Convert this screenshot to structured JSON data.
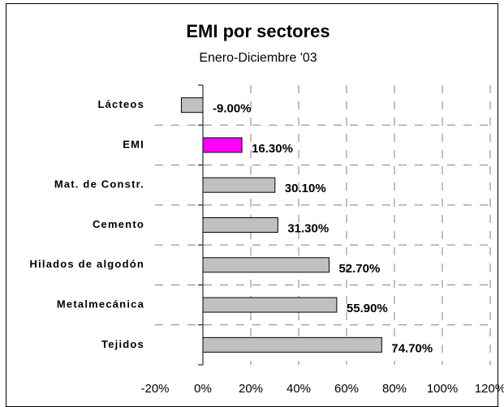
{
  "chart_data": {
    "type": "hbar",
    "title": "EMI por sectores",
    "subtitle": "Enero-Diciembre '03",
    "categories": [
      "Lácteos",
      "EMI",
      "Mat. de Constr.",
      "Cemento",
      "Hilados de algodón",
      "Metalmecánica",
      "Tejidos"
    ],
    "values": [
      -9,
      16.3,
      30.1,
      31.3,
      52.7,
      55.9,
      74.7
    ],
    "value_labels": [
      "-9.00%",
      "16.30%",
      "30.10%",
      "31.30%",
      "52.70%",
      "55.90%",
      "74.70%"
    ],
    "colors": [
      "#c0c0c0",
      "#ff00ff",
      "#c0c0c0",
      "#c0c0c0",
      "#c0c0c0",
      "#c0c0c0",
      "#c0c0c0"
    ],
    "xlim": [
      -20,
      120
    ],
    "xticks": [
      {
        "value": -20,
        "label": "-20%"
      },
      {
        "value": 0,
        "label": "0%"
      },
      {
        "value": 20,
        "label": "20%"
      },
      {
        "value": 40,
        "label": "40%"
      },
      {
        "value": 60,
        "label": "60%"
      },
      {
        "value": 80,
        "label": "80%"
      },
      {
        "value": 100,
        "label": "100%"
      },
      {
        "value": 120,
        "label": "120%"
      }
    ],
    "grid": true
  }
}
